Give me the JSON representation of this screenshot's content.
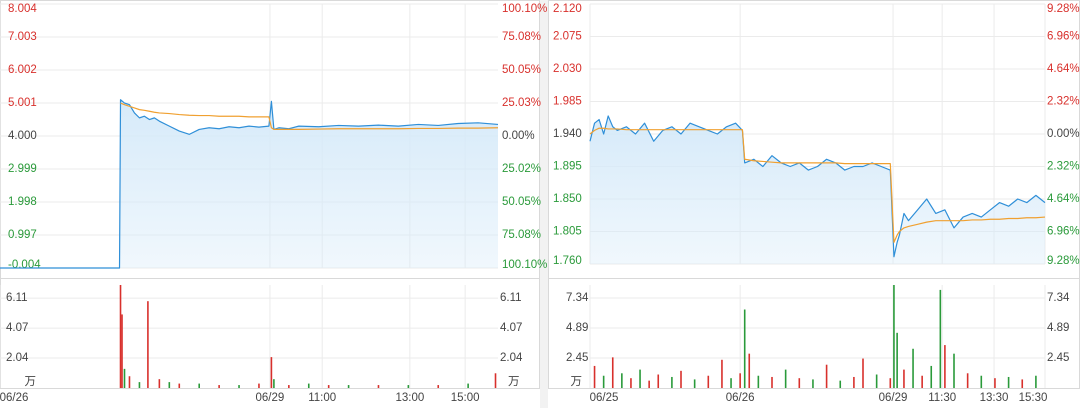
{
  "chart_data": [
    {
      "type": "line",
      "x": [
        0,
        24,
        24.2,
        25,
        26,
        27,
        28,
        29,
        30,
        31,
        32,
        34,
        36,
        38,
        40,
        42,
        44,
        46,
        48,
        50,
        52,
        54,
        54.5,
        55,
        56,
        58,
        60,
        64,
        68,
        72,
        76,
        80,
        84,
        88,
        92,
        96,
        100
      ],
      "xlim": [
        0,
        100
      ],
      "xticks": [
        {
          "value": 0,
          "label": "06/26"
        },
        {
          "value": 54.2,
          "label": "06/29"
        },
        {
          "value": 64.7,
          "label": "11:00"
        },
        {
          "value": 82.3,
          "label": "13:00"
        },
        {
          "value": 93.4,
          "label": "15:00"
        }
      ],
      "ylim": [
        -0.004,
        8.004
      ],
      "yticks": [
        8.004,
        7.003,
        6.002,
        5.001,
        {
          "value": 4,
          "label": "4.000"
        },
        2.999,
        1.998,
        0.997,
        -0.004
      ],
      "y2lim": [
        -100.1,
        100.1
      ],
      "y2ticks": [
        {
          "value": 100.1,
          "label": "100.10%"
        },
        {
          "value": 75.08,
          "label": "75.08%"
        },
        {
          "value": 50.05,
          "label": "50.05%"
        },
        {
          "value": 25.03,
          "label": "25.03%"
        },
        {
          "value": 0,
          "label": "0.00%"
        },
        {
          "value": -25.02,
          "label": "25.02%"
        },
        {
          "value": -50.05,
          "label": "50.05%"
        },
        {
          "value": -75.08,
          "label": "75.08%"
        },
        {
          "value": -100.1,
          "label": "100.10%"
        }
      ],
      "base": 4.0,
      "grid": true,
      "area_color": "#d6eaf9",
      "series": [
        {
          "color": "#2f8fd8",
          "values": [
            -0.004,
            -0.004,
            5.1,
            5.0,
            4.95,
            4.7,
            4.55,
            4.6,
            4.5,
            4.55,
            4.45,
            4.3,
            4.15,
            4.05,
            4.2,
            4.25,
            4.22,
            4.28,
            4.25,
            4.3,
            4.27,
            4.3,
            5.05,
            4.2,
            4.25,
            4.22,
            4.3,
            4.28,
            4.32,
            4.3,
            4.33,
            4.3,
            4.35,
            4.32,
            4.38,
            4.4,
            4.35
          ]
        },
        {
          "color": "#f0a030",
          "values": [
            null,
            null,
            5.0,
            4.95,
            4.9,
            4.85,
            4.8,
            4.78,
            4.75,
            4.72,
            4.7,
            4.68,
            4.65,
            4.63,
            4.62,
            4.62,
            4.6,
            4.6,
            4.6,
            4.58,
            4.58,
            4.58,
            4.25,
            4.2,
            4.2,
            4.2,
            4.2,
            4.21,
            4.22,
            4.22,
            4.22,
            4.22,
            4.23,
            4.23,
            4.24,
            4.24,
            4.25
          ]
        }
      ],
      "volume": {
        "unit": "万",
        "ylim": [
          0,
          7
        ],
        "yticks": [
          2.04,
          4.07,
          6.11
        ],
        "x": [
          24.2,
          24.5,
          25,
          26,
          28,
          29.7,
          32,
          34,
          36,
          40,
          44,
          48,
          52,
          54.5,
          55,
          58,
          62,
          66,
          70,
          76,
          82,
          88,
          94,
          99.5
        ],
        "values": [
          7.0,
          5.0,
          1.3,
          0.8,
          0.4,
          5.9,
          0.6,
          0.4,
          0.3,
          0.3,
          0.2,
          0.2,
          0.3,
          2.1,
          0.6,
          0.2,
          0.3,
          0.2,
          0.2,
          0.2,
          0.2,
          0.2,
          0.3,
          1.0
        ],
        "colors": [
          "#d8302c",
          "#d8302c",
          "#2a9a3a",
          "#d8302c",
          "#2a9a3a",
          "#d8302c",
          "#d8302c",
          "#2a9a3a",
          "#d8302c",
          "#2a9a3a",
          "#d8302c",
          "#2a9a3a",
          "#d8302c",
          "#d8302c",
          "#2a9a3a",
          "#d8302c",
          "#2a9a3a",
          "#d8302c",
          "#2a9a3a",
          "#d8302c",
          "#2a9a3a",
          "#d8302c",
          "#2a9a3a",
          "#d8302c"
        ]
      }
    },
    {
      "type": "line",
      "x": [
        0,
        1,
        2,
        3,
        4,
        5,
        6,
        8,
        10,
        12,
        14,
        16,
        18,
        20,
        22,
        24,
        26,
        28,
        30,
        32,
        33.5,
        34,
        36,
        38,
        40,
        42,
        44,
        46,
        48,
        50,
        52,
        54,
        56,
        58,
        60,
        62,
        64,
        66,
        66.8,
        67.5,
        68,
        69,
        70,
        72,
        74,
        76,
        78,
        80,
        82,
        84,
        86,
        88,
        90,
        92,
        94,
        96,
        98,
        100
      ],
      "xlim": [
        0,
        100
      ],
      "xticks": [
        {
          "value": 0,
          "label": "06/25"
        },
        {
          "value": 33,
          "label": "06/26"
        },
        {
          "value": 66.6,
          "label": "06/29"
        },
        {
          "value": 77.4,
          "label": "11:30"
        },
        {
          "value": 88.8,
          "label": "13:30"
        },
        {
          "value": 100,
          "label": "15:30"
        }
      ],
      "ylim": [
        1.76,
        2.12
      ],
      "yticks": [
        {
          "value": 2.12,
          "label": "2.120"
        },
        2.075,
        {
          "value": 2.03,
          "label": "2.030"
        },
        1.985,
        {
          "value": 1.94,
          "label": "1.940"
        },
        1.895,
        {
          "value": 1.85,
          "label": "1.850"
        },
        1.805,
        {
          "value": 1.76,
          "label": "1.760"
        }
      ],
      "y2lim": [
        -9.28,
        9.28
      ],
      "y2ticks": [
        {
          "value": 9.28,
          "label": "9.28%"
        },
        {
          "value": 6.96,
          "label": "6.96%"
        },
        {
          "value": 4.64,
          "label": "4.64%"
        },
        {
          "value": 2.32,
          "label": "2.32%"
        },
        {
          "value": 0,
          "label": "0.00%"
        },
        {
          "value": -2.32,
          "label": "2.32%"
        },
        {
          "value": -4.64,
          "label": "4.64%"
        },
        {
          "value": -6.96,
          "label": "6.96%"
        },
        {
          "value": -9.28,
          "label": "9.28%"
        }
      ],
      "base": 1.94,
      "grid": true,
      "area_color": "#d6eaf9",
      "series": [
        {
          "color": "#2f8fd8",
          "values": [
            1.93,
            1.955,
            1.96,
            1.94,
            1.965,
            1.95,
            1.945,
            1.95,
            1.94,
            1.955,
            1.93,
            1.945,
            1.95,
            1.94,
            1.955,
            1.95,
            1.945,
            1.94,
            1.95,
            1.955,
            1.945,
            1.9,
            1.905,
            1.895,
            1.91,
            1.9,
            1.895,
            1.9,
            1.89,
            1.895,
            1.905,
            1.9,
            1.89,
            1.895,
            1.895,
            1.9,
            1.895,
            1.89,
            1.77,
            1.79,
            1.8,
            1.83,
            1.82,
            1.835,
            1.85,
            1.83,
            1.835,
            1.81,
            1.825,
            1.83,
            1.825,
            1.835,
            1.845,
            1.84,
            1.85,
            1.845,
            1.855,
            1.845
          ]
        },
        {
          "color": "#f0a030",
          "values": [
            1.94,
            1.945,
            1.948,
            1.948,
            1.947,
            1.947,
            1.947,
            1.946,
            1.946,
            1.946,
            1.946,
            1.946,
            1.946,
            1.946,
            1.946,
            1.946,
            1.946,
            1.946,
            1.946,
            1.946,
            1.946,
            1.905,
            1.903,
            1.902,
            1.901,
            1.9,
            1.9,
            1.9,
            1.9,
            1.9,
            1.9,
            1.9,
            1.899,
            1.899,
            1.899,
            1.899,
            1.899,
            1.899,
            1.79,
            1.8,
            1.805,
            1.81,
            1.812,
            1.815,
            1.818,
            1.82,
            1.82,
            1.82,
            1.82,
            1.821,
            1.821,
            1.822,
            1.822,
            1.823,
            1.823,
            1.824,
            1.824,
            1.825
          ]
        }
      ],
      "volume": {
        "unit": "万",
        "ylim": [
          0,
          8.4
        ],
        "yticks": [
          2.45,
          4.89,
          7.34
        ],
        "x": [
          1,
          3,
          5,
          7,
          9,
          11,
          13,
          15,
          18,
          20,
          23,
          26,
          29,
          31,
          33,
          34,
          35,
          37,
          40,
          43,
          46,
          49,
          52,
          55,
          58,
          60,
          63,
          66,
          66.8,
          67.5,
          69,
          71,
          73,
          75,
          77,
          78,
          80,
          83,
          86,
          89,
          92,
          95,
          98
        ],
        "values": [
          1.8,
          1.0,
          2.5,
          1.2,
          0.8,
          1.5,
          0.6,
          1.1,
          0.9,
          1.4,
          0.7,
          1.0,
          2.3,
          0.8,
          1.2,
          6.4,
          2.8,
          1.0,
          0.9,
          1.5,
          0.8,
          0.7,
          1.9,
          0.6,
          0.9,
          2.4,
          1.1,
          0.8,
          8.4,
          4.5,
          1.5,
          3.2,
          1.0,
          1.8,
          8.0,
          3.5,
          2.8,
          1.2,
          1.0,
          0.8,
          0.9,
          0.7,
          1.0
        ],
        "colors": [
          "#d8302c",
          "#2a9a3a",
          "#d8302c",
          "#2a9a3a",
          "#d8302c",
          "#2a9a3a",
          "#d8302c",
          "#d8302c",
          "#2a9a3a",
          "#d8302c",
          "#2a9a3a",
          "#d8302c",
          "#d8302c",
          "#2a9a3a",
          "#d8302c",
          "#2a9a3a",
          "#d8302c",
          "#2a9a3a",
          "#d8302c",
          "#2a9a3a",
          "#d8302c",
          "#2a9a3a",
          "#d8302c",
          "#2a9a3a",
          "#d8302c",
          "#d8302c",
          "#2a9a3a",
          "#d8302c",
          "#2a9a3a",
          "#2a9a3a",
          "#d8302c",
          "#2a9a3a",
          "#d8302c",
          "#2a9a3a",
          "#2a9a3a",
          "#d8302c",
          "#2a9a3a",
          "#d8302c",
          "#2a9a3a",
          "#d8302c",
          "#2a9a3a",
          "#d8302c",
          "#2a9a3a"
        ]
      }
    }
  ]
}
